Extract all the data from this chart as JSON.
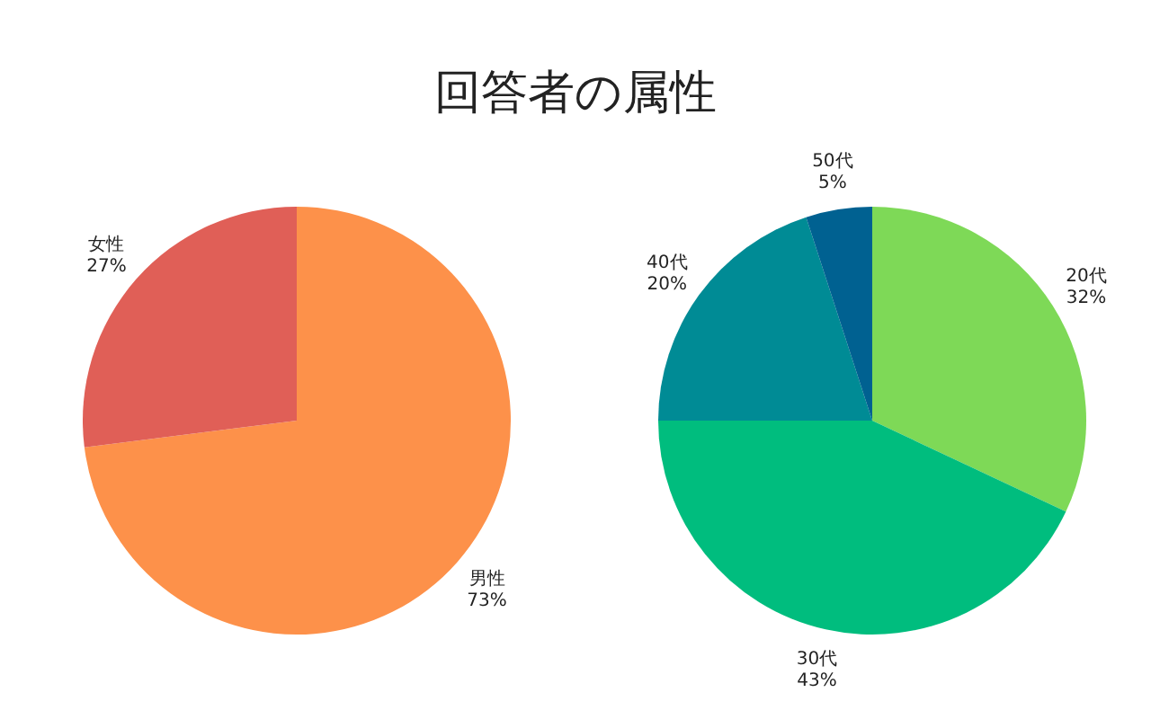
{
  "chart_data": [
    {
      "type": "pie",
      "title": "回答者の属性",
      "categories": [
        "男性",
        "女性"
      ],
      "values": [
        73,
        27
      ],
      "colors": [
        "#fd914a",
        "#e05f57"
      ],
      "value_labels": [
        "73%",
        "27%"
      ],
      "legend": false
    },
    {
      "type": "pie",
      "categories": [
        "20代",
        "30代",
        "40代",
        "50代"
      ],
      "values": [
        32,
        43,
        20,
        5
      ],
      "colors": [
        "#7ed957",
        "#00bd7e",
        "#008b95",
        "#006191"
      ],
      "value_labels": [
        "32%",
        "43%",
        "20%",
        "5%"
      ],
      "legend": false
    }
  ]
}
